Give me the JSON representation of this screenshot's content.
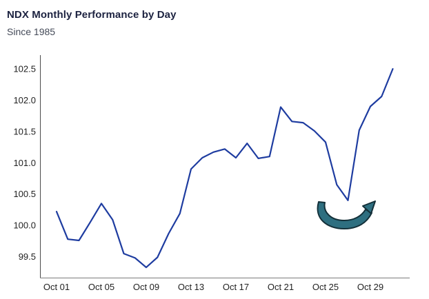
{
  "header": {
    "title": "NDX Monthly Performance by Day",
    "subtitle": "Since 1985"
  },
  "chart_data": {
    "type": "line",
    "title": "NDX Monthly Performance by Day",
    "subtitle": "Since 1985",
    "xlabel": "",
    "ylabel": "",
    "categories": [
      "Oct 01",
      "Oct 02",
      "Oct 03",
      "Oct 04",
      "Oct 05",
      "Oct 06",
      "Oct 07",
      "Oct 08",
      "Oct 09",
      "Oct 10",
      "Oct 11",
      "Oct 12",
      "Oct 13",
      "Oct 14",
      "Oct 15",
      "Oct 16",
      "Oct 17",
      "Oct 18",
      "Oct 19",
      "Oct 20",
      "Oct 21",
      "Oct 22",
      "Oct 23",
      "Oct 24",
      "Oct 25",
      "Oct 26",
      "Oct 27",
      "Oct 28",
      "Oct 29",
      "Oct 30",
      "Oct 31"
    ],
    "values": [
      100.22,
      99.78,
      99.76,
      100.05,
      100.35,
      100.09,
      99.55,
      99.48,
      99.33,
      99.49,
      99.87,
      100.19,
      100.9,
      101.08,
      101.17,
      101.22,
      101.08,
      101.31,
      101.07,
      101.1,
      101.89,
      101.66,
      101.64,
      101.51,
      101.33,
      100.65,
      100.4,
      101.52,
      101.9,
      102.06,
      102.5
    ],
    "xtick_labels": [
      "Oct 01",
      "Oct 05",
      "Oct 09",
      "Oct 13",
      "Oct 17",
      "Oct 21",
      "Oct 25",
      "Oct 29"
    ],
    "xtick_days": [
      1,
      5,
      9,
      13,
      17,
      21,
      25,
      29
    ],
    "ytick_values": [
      99.5,
      100.0,
      100.5,
      101.0,
      101.5,
      102.0,
      102.5
    ],
    "ylim": [
      99.16,
      102.72
    ],
    "xlim_days": [
      1,
      31
    ],
    "grid": false,
    "legend": "none",
    "line_color": "#1e3ca0",
    "annotation": {
      "shape": "curved-u-arrow",
      "meaning": "highlights late-month dip and rebound",
      "fill": "#2e6f80",
      "stroke": "#143039"
    }
  },
  "colors": {
    "background": "#ffffff",
    "title_text": "#1c2240",
    "subtitle_text": "#444a58",
    "tick_text": "#1f1f1f",
    "y_axis": "#4a4a4a",
    "x_axis": "#7a7a7a"
  }
}
